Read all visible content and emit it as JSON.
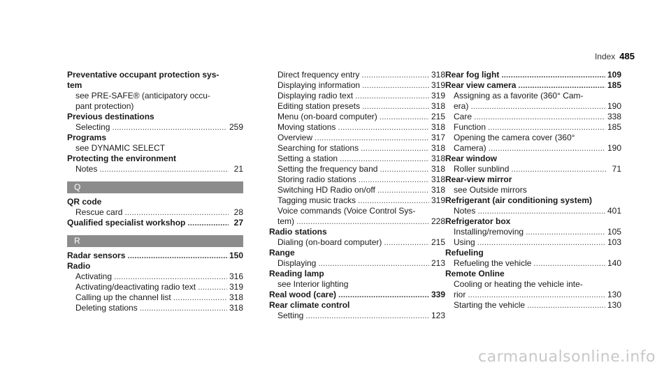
{
  "header": {
    "title": "Index",
    "page": "485"
  },
  "columns": [
    [
      {
        "kind": "line",
        "cls": "head",
        "text": "Preventative occupant protection sys-"
      },
      {
        "kind": "line",
        "cls": "head",
        "text": "tem"
      },
      {
        "kind": "line",
        "cls": "sub",
        "text": "see PRE-SAFE® (anticipatory occu-"
      },
      {
        "kind": "line",
        "cls": "sub",
        "text": "pant protection)"
      },
      {
        "kind": "line",
        "cls": "head",
        "text": "Previous destinations"
      },
      {
        "kind": "row",
        "cls": "sub",
        "text": "Selecting",
        "page": "259"
      },
      {
        "kind": "line",
        "cls": "head",
        "text": "Programs"
      },
      {
        "kind": "line",
        "cls": "sub",
        "text": "see DYNAMIC SELECT"
      },
      {
        "kind": "line",
        "cls": "head",
        "text": "Protecting the environment"
      },
      {
        "kind": "row",
        "cls": "sub",
        "text": "Notes",
        "page": "21"
      },
      {
        "kind": "letter",
        "text": "Q"
      },
      {
        "kind": "line",
        "cls": "head",
        "text": "QR code"
      },
      {
        "kind": "row",
        "cls": "sub",
        "text": "Rescue card",
        "page": "28"
      },
      {
        "kind": "row",
        "cls": "head",
        "text": "Qualified specialist workshop",
        "page": "27"
      },
      {
        "kind": "letter",
        "text": "R"
      },
      {
        "kind": "row",
        "cls": "head",
        "text": "Radar sensors",
        "page": "150"
      },
      {
        "kind": "line",
        "cls": "head",
        "text": "Radio"
      },
      {
        "kind": "row",
        "cls": "sub",
        "text": "Activating",
        "page": "316"
      },
      {
        "kind": "row",
        "cls": "sub",
        "text": "Activating/deactivating radio text",
        "page": "319"
      },
      {
        "kind": "row",
        "cls": "sub",
        "text": "Calling up the channel list",
        "page": "318"
      },
      {
        "kind": "row",
        "cls": "sub",
        "text": "Deleting stations",
        "page": "318"
      }
    ],
    [
      {
        "kind": "row",
        "cls": "sub",
        "text": "Direct frequency entry",
        "page": "318"
      },
      {
        "kind": "row",
        "cls": "sub",
        "text": "Displaying information",
        "page": "319"
      },
      {
        "kind": "row",
        "cls": "sub",
        "text": "Displaying radio text",
        "page": "319"
      },
      {
        "kind": "row",
        "cls": "sub",
        "text": "Editing station presets",
        "page": "318"
      },
      {
        "kind": "row",
        "cls": "sub",
        "text": "Menu (on-board computer)",
        "page": "215"
      },
      {
        "kind": "row",
        "cls": "sub",
        "text": "Moving stations",
        "page": "318"
      },
      {
        "kind": "row",
        "cls": "sub",
        "text": "Overview",
        "page": "317"
      },
      {
        "kind": "row",
        "cls": "sub",
        "text": "Searching for stations",
        "page": "318"
      },
      {
        "kind": "row",
        "cls": "sub",
        "text": "Setting a station",
        "page": "318"
      },
      {
        "kind": "row",
        "cls": "sub",
        "text": "Setting the frequency band",
        "page": "318"
      },
      {
        "kind": "row",
        "cls": "sub",
        "text": "Storing radio stations",
        "page": "318"
      },
      {
        "kind": "row",
        "cls": "sub",
        "text": "Switching HD Radio on/off",
        "page": "318"
      },
      {
        "kind": "row",
        "cls": "sub",
        "text": "Tagging music tracks",
        "page": "319"
      },
      {
        "kind": "line",
        "cls": "sub",
        "text": "Voice commands (Voice Control Sys-"
      },
      {
        "kind": "row",
        "cls": "sub",
        "text": "tem)",
        "page": "228"
      },
      {
        "kind": "line",
        "cls": "head",
        "text": "Radio stations"
      },
      {
        "kind": "row",
        "cls": "sub",
        "text": "Dialing (on-board computer)",
        "page": "215"
      },
      {
        "kind": "line",
        "cls": "head",
        "text": "Range"
      },
      {
        "kind": "row",
        "cls": "sub",
        "text": "Displaying",
        "page": "213"
      },
      {
        "kind": "line",
        "cls": "head",
        "text": "Reading lamp"
      },
      {
        "kind": "line",
        "cls": "sub",
        "text": "see Interior lighting"
      },
      {
        "kind": "row",
        "cls": "head",
        "text": "Real wood (care)",
        "page": "339"
      },
      {
        "kind": "line",
        "cls": "head",
        "text": "Rear climate control"
      },
      {
        "kind": "row",
        "cls": "sub",
        "text": "Setting",
        "page": "123"
      }
    ],
    [
      {
        "kind": "row",
        "cls": "head",
        "text": "Rear fog light",
        "page": "109"
      },
      {
        "kind": "row",
        "cls": "head",
        "text": "Rear view camera",
        "page": "185"
      },
      {
        "kind": "line",
        "cls": "sub",
        "text": "Assigning as a favorite (360° Cam-"
      },
      {
        "kind": "row",
        "cls": "sub",
        "text": "era)",
        "page": "190"
      },
      {
        "kind": "row",
        "cls": "sub",
        "text": "Care",
        "page": "338"
      },
      {
        "kind": "row",
        "cls": "sub",
        "text": "Function",
        "page": "185"
      },
      {
        "kind": "line",
        "cls": "sub",
        "text": "Opening the camera cover (360°"
      },
      {
        "kind": "row",
        "cls": "sub",
        "text": "Camera)",
        "page": "190"
      },
      {
        "kind": "line",
        "cls": "head",
        "text": "Rear window"
      },
      {
        "kind": "row",
        "cls": "sub",
        "text": "Roller sunblind",
        "page": "71"
      },
      {
        "kind": "line",
        "cls": "head",
        "text": "Rear-view mirror"
      },
      {
        "kind": "line",
        "cls": "sub",
        "text": "see Outside mirrors"
      },
      {
        "kind": "line",
        "cls": "head",
        "text": "Refrigerant (air conditioning system)"
      },
      {
        "kind": "row",
        "cls": "sub",
        "text": "Notes",
        "page": "401"
      },
      {
        "kind": "line",
        "cls": "head",
        "text": "Refrigerator box"
      },
      {
        "kind": "row",
        "cls": "sub",
        "text": "Installing/removing",
        "page": "105"
      },
      {
        "kind": "row",
        "cls": "sub",
        "text": "Using",
        "page": "103"
      },
      {
        "kind": "line",
        "cls": "head",
        "text": "Refueling"
      },
      {
        "kind": "row",
        "cls": "sub",
        "text": "Refueling the vehicle",
        "page": "140"
      },
      {
        "kind": "line",
        "cls": "head",
        "text": "Remote Online"
      },
      {
        "kind": "line",
        "cls": "sub",
        "text": "Cooling or heating the vehicle inte-"
      },
      {
        "kind": "row",
        "cls": "sub",
        "text": "rior",
        "page": "130"
      },
      {
        "kind": "row",
        "cls": "sub",
        "text": "Starting the vehicle",
        "page": "130"
      }
    ]
  ],
  "watermark": "carmanualsonline.info"
}
